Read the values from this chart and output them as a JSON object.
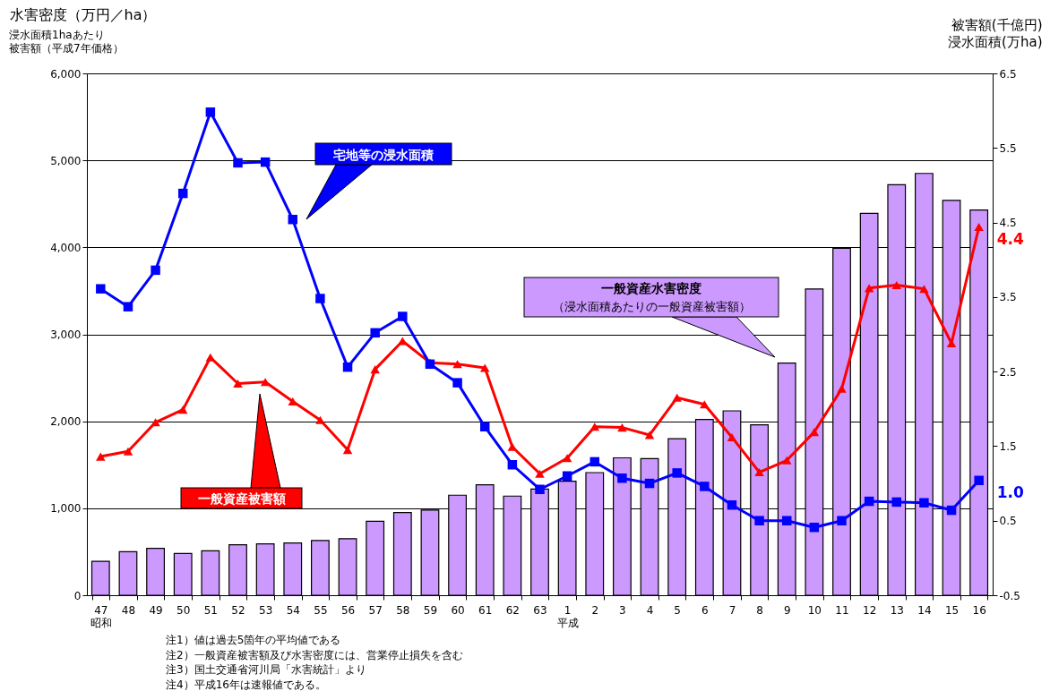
{
  "chart_data": {
    "type": "bar",
    "ylabel": "水害密度（万円／ha）",
    "y2label": "被害額(千億円)浸水面積(万ha)",
    "categories": [
      "47\n昭和",
      "48",
      "49",
      "50",
      "51",
      "52",
      "53",
      "54",
      "55",
      "56",
      "57",
      "58",
      "59",
      "60",
      "61",
      "62",
      "63",
      "1\n平成",
      "2",
      "3",
      "4",
      "5",
      "6",
      "7",
      "8",
      "9",
      "10",
      "11",
      "12",
      "13",
      "14",
      "15",
      "16"
    ],
    "ylim": [
      0,
      6000
    ],
    "yticks": [
      {
        "value": 0,
        "label": "0"
      },
      {
        "value": 1000,
        "label": "1,000"
      },
      {
        "value": 2000,
        "label": "2,000"
      },
      {
        "value": 3000,
        "label": "3,000"
      },
      {
        "value": 4000,
        "label": "4,000"
      },
      {
        "value": 5000,
        "label": "5,000"
      },
      {
        "value": 6000,
        "label": "6,000"
      }
    ],
    "y2lim": [
      -0.5,
      6.5
    ],
    "y2ticks": [
      -0.5,
      0.5,
      1.5,
      2.5,
      3.5,
      4.5,
      5.5,
      6.5
    ],
    "grid": "y",
    "series": [
      {
        "name": "一般資産水害密度",
        "color": "#cc99ff",
        "values": [
          390,
          500,
          540,
          480,
          510,
          580,
          590,
          600,
          630,
          650,
          850,
          950,
          980,
          1150,
          1270,
          1140,
          1220,
          1310,
          1410,
          1580,
          1570,
          1800,
          2020,
          2120,
          1960,
          2670,
          3520,
          3990,
          4390,
          4720,
          4850,
          4540,
          4430
        ]
      },
      {
        "type": "line",
        "axis": "y2",
        "name": "一般資産被害額",
        "color": "#ff0000",
        "marker": "triangle",
        "line_style": "solid",
        "values": [
          1.36,
          1.43,
          1.82,
          1.99,
          2.69,
          2.34,
          2.36,
          2.1,
          1.85,
          1.45,
          2.53,
          2.91,
          2.62,
          2.6,
          2.55,
          1.49,
          1.13,
          1.34,
          1.76,
          1.75,
          1.65,
          2.15,
          2.06,
          1.62,
          1.15,
          1.31,
          1.69,
          2.27,
          3.62,
          3.66,
          3.61,
          2.88,
          4.44
        ],
        "value_labels": [
          null,
          null,
          null,
          null,
          null,
          null,
          null,
          null,
          null,
          null,
          null,
          null,
          null,
          null,
          null,
          null,
          null,
          null,
          null,
          null,
          null,
          null,
          null,
          null,
          null,
          null,
          null,
          null,
          null,
          null,
          null,
          null,
          "4.4"
        ]
      },
      {
        "type": "line",
        "axis": "y2",
        "name": "宅地等の浸水面積",
        "color": "#0000ff",
        "marker": "square",
        "line_style": "solid",
        "values": [
          3.61,
          3.37,
          3.86,
          4.89,
          5.98,
          5.3,
          5.31,
          4.54,
          3.48,
          2.56,
          3.02,
          3.24,
          2.6,
          2.35,
          1.76,
          1.25,
          0.92,
          1.1,
          1.29,
          1.07,
          1.0,
          1.14,
          0.96,
          0.71,
          0.5,
          0.5,
          0.41,
          0.5,
          0.76,
          0.75,
          0.74,
          0.64,
          1.04
        ],
        "value_labels": [
          null,
          null,
          null,
          null,
          null,
          null,
          null,
          null,
          null,
          null,
          null,
          null,
          null,
          null,
          null,
          null,
          null,
          null,
          null,
          null,
          null,
          null,
          null,
          null,
          null,
          null,
          null,
          null,
          null,
          null,
          null,
          null,
          "1.0"
        ]
      }
    ],
    "annotations": [
      "（浸水面積あたりの一般資産被害額）",
      "浸水面積1haあたり",
      "被害額（平成7年価格）",
      "注1）値は過去5箇年の平均値である",
      "注2）一般資産被害額及び水害密度には、営業停止損失を含む",
      "注3）国土交通省河川局「水害統計」より",
      "注4）平成16年は速報値である。"
    ]
  }
}
